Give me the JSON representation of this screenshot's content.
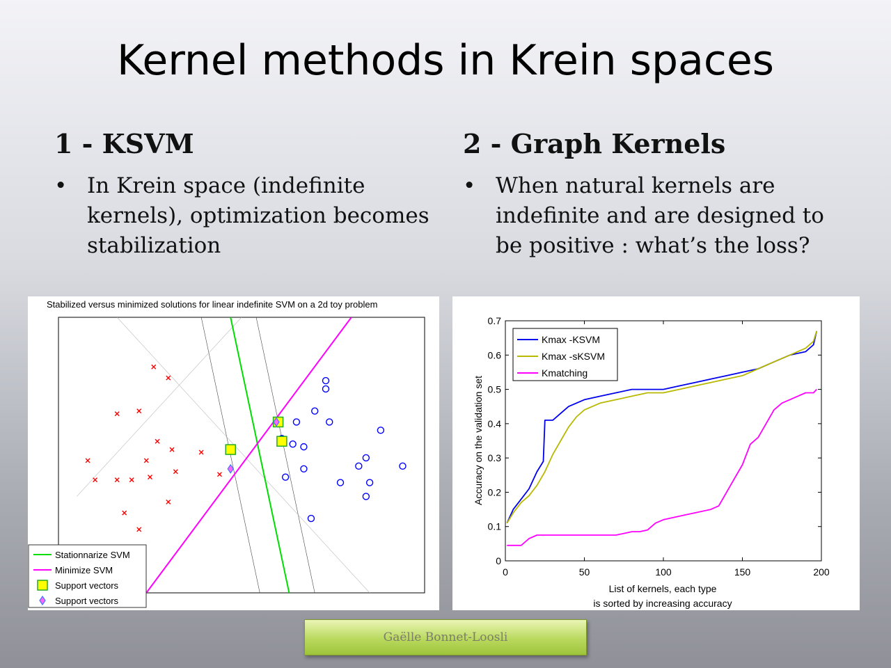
{
  "slide": {
    "title": "Kernel methods in Krein spaces"
  },
  "left_column": {
    "heading": "1 - KSVM",
    "bullet_symbol": "•",
    "bullet_lines": [
      "In Krein space (indefinite",
      "kernels), optimization becomes",
      "stabilization"
    ]
  },
  "right_column": {
    "heading": "2 - Graph Kernels",
    "bullet_symbol": "•",
    "bullet_lines": [
      "When natural kernels are",
      "indefinite and are designed to",
      "be positive : what’s the loss?"
    ]
  },
  "footer": {
    "author": "Gaëlle Bonnet-Loosli"
  },
  "chart_data": [
    {
      "type": "scatter",
      "title": "Stabilized versus minimized solutions for linear indefinite SVM on a 2d toy problem",
      "xlim": [
        0,
        10
      ],
      "ylim": [
        0,
        10
      ],
      "grid": false,
      "legend_position": "bottom-left",
      "colors": {
        "class_x": "#ff0000",
        "class_o": "#0000ff",
        "stationnarize": "#00dd00",
        "minimize": "#ff00ff",
        "sv_square_fill": "#ffff00",
        "sv_diamond_fill": "#ff66ff"
      },
      "series": [
        {
          "name": "class-x",
          "marker": "x",
          "points": [
            [
              2.6,
              8.2
            ],
            [
              3.0,
              7.8
            ],
            [
              1.6,
              6.5
            ],
            [
              2.2,
              6.6
            ],
            [
              2.7,
              5.5
            ],
            [
              3.1,
              5.2
            ],
            [
              3.9,
              5.1
            ],
            [
              0.8,
              4.8
            ],
            [
              2.4,
              4.8
            ],
            [
              3.2,
              4.4
            ],
            [
              1.0,
              4.1
            ],
            [
              1.6,
              4.1
            ],
            [
              2.0,
              4.1
            ],
            [
              2.5,
              4.2
            ],
            [
              3.0,
              3.3
            ],
            [
              1.8,
              2.9
            ],
            [
              2.2,
              2.3
            ],
            [
              4.4,
              4.3
            ]
          ]
        },
        {
          "name": "class-o",
          "marker": "o",
          "points": [
            [
              7.3,
              7.7
            ],
            [
              7.3,
              7.4
            ],
            [
              7.0,
              6.6
            ],
            [
              6.5,
              6.2
            ],
            [
              7.4,
              6.2
            ],
            [
              8.8,
              5.9
            ],
            [
              6.1,
              5.6
            ],
            [
              6.4,
              5.4
            ],
            [
              6.7,
              5.3
            ],
            [
              8.4,
              4.9
            ],
            [
              9.4,
              4.6
            ],
            [
              6.7,
              4.5
            ],
            [
              6.2,
              4.2
            ],
            [
              7.7,
              4.0
            ],
            [
              8.2,
              4.6
            ],
            [
              8.5,
              4.0
            ],
            [
              8.4,
              3.5
            ],
            [
              6.9,
              2.7
            ]
          ]
        },
        {
          "name": "Stationnarize SVM",
          "type": "line",
          "points": [
            [
              4.7,
              10
            ],
            [
              6.3,
              0
            ]
          ]
        },
        {
          "name": "Minimize SVM",
          "type": "line",
          "points": [
            [
              2.4,
              0
            ],
            [
              8.0,
              10
            ]
          ]
        },
        {
          "name": "Support vectors",
          "marker": "square",
          "points": [
            [
              6.0,
              6.2
            ],
            [
              4.7,
              5.2
            ],
            [
              6.1,
              5.5
            ]
          ]
        },
        {
          "name": "Support vectors",
          "marker": "diamond",
          "points": [
            [
              5.95,
              6.2
            ],
            [
              4.7,
              4.5
            ]
          ]
        }
      ],
      "legend": [
        "Stationnarize SVM",
        "Minimize SVM",
        "Support vectors",
        "Support vectors"
      ]
    },
    {
      "type": "line",
      "xlabel": "List of kernels, each type",
      "xlabel_line2": "is sorted by increasing accuracy",
      "ylabel": "Accuracy on the validation set",
      "xlim": [
        0,
        200
      ],
      "ylim": [
        0,
        0.7
      ],
      "xticks": [
        0,
        50,
        100,
        150,
        200
      ],
      "yticks": [
        0,
        0.1,
        0.2,
        0.3,
        0.4,
        0.5,
        0.6,
        0.7
      ],
      "xtick_labels": [
        "0",
        "50",
        "100",
        "150",
        "200"
      ],
      "ytick_labels": [
        "0",
        "0.1",
        "0.2",
        "0.3",
        "0.4",
        "0.5",
        "0.6",
        "0.7"
      ],
      "grid": false,
      "legend_position": "top-left",
      "series": [
        {
          "name": "Kmax -KSVM",
          "color": "#0000ee",
          "x": [
            1,
            5,
            10,
            15,
            20,
            24,
            25,
            30,
            35,
            40,
            50,
            60,
            70,
            80,
            90,
            100,
            110,
            120,
            130,
            140,
            150,
            160,
            170,
            180,
            190,
            195,
            197
          ],
          "y": [
            0.11,
            0.15,
            0.18,
            0.21,
            0.26,
            0.29,
            0.41,
            0.41,
            0.43,
            0.45,
            0.47,
            0.48,
            0.49,
            0.5,
            0.5,
            0.5,
            0.51,
            0.52,
            0.53,
            0.54,
            0.55,
            0.56,
            0.58,
            0.6,
            0.61,
            0.63,
            0.67
          ]
        },
        {
          "name": "Kmax -sKSVM",
          "color": "#b8b800",
          "x": [
            1,
            5,
            10,
            15,
            20,
            25,
            30,
            35,
            40,
            45,
            50,
            60,
            70,
            80,
            90,
            100,
            110,
            120,
            130,
            140,
            150,
            160,
            170,
            180,
            190,
            195,
            197
          ],
          "y": [
            0.11,
            0.14,
            0.17,
            0.19,
            0.22,
            0.26,
            0.31,
            0.35,
            0.39,
            0.42,
            0.44,
            0.46,
            0.47,
            0.48,
            0.49,
            0.49,
            0.5,
            0.51,
            0.52,
            0.53,
            0.54,
            0.56,
            0.58,
            0.6,
            0.62,
            0.64,
            0.67
          ]
        },
        {
          "name": "Kmatching",
          "color": "#ff00ff",
          "x": [
            1,
            10,
            15,
            20,
            30,
            40,
            50,
            60,
            70,
            75,
            80,
            85,
            90,
            95,
            100,
            110,
            120,
            130,
            135,
            140,
            145,
            150,
            155,
            160,
            165,
            170,
            175,
            180,
            185,
            190,
            195,
            197
          ],
          "y": [
            0.045,
            0.045,
            0.065,
            0.075,
            0.075,
            0.075,
            0.075,
            0.075,
            0.075,
            0.08,
            0.085,
            0.085,
            0.09,
            0.11,
            0.12,
            0.13,
            0.14,
            0.15,
            0.16,
            0.2,
            0.24,
            0.28,
            0.34,
            0.36,
            0.4,
            0.44,
            0.46,
            0.47,
            0.48,
            0.49,
            0.49,
            0.5
          ]
        }
      ]
    }
  ]
}
